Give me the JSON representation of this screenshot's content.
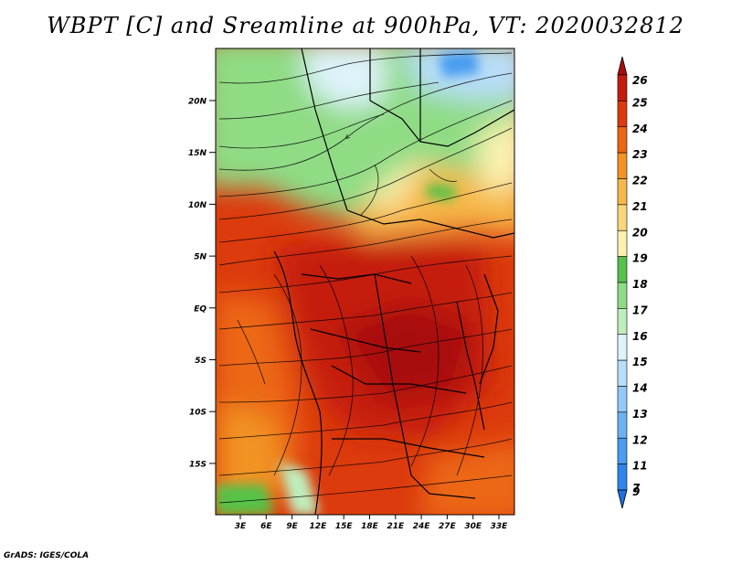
{
  "title": "WBPT [C] and Sreamline at 900hPa, VT: 2020032812",
  "credit": "GrADS: IGES/COLA",
  "map": {
    "lat_labels": [
      "20N",
      "15N",
      "10N",
      "5N",
      "EQ",
      "5S",
      "10S",
      "15S"
    ],
    "lon_labels": [
      "3E",
      "6E",
      "9E",
      "12E",
      "15E",
      "18E",
      "21E",
      "24E",
      "27E",
      "30E",
      "33E"
    ]
  },
  "colorbar": {
    "labels": [
      "7",
      "9",
      "11",
      "12",
      "13",
      "14",
      "15",
      "16",
      "17",
      "18",
      "19",
      "20",
      "21",
      "22",
      "23",
      "24",
      "25",
      "26"
    ],
    "colors": [
      "#1f6fe3",
      "#2f86ea",
      "#4a9cf0",
      "#6cb2f4",
      "#92c9f7",
      "#b9defa",
      "#dff3fb",
      "#bfeebd",
      "#8fdc85",
      "#56c24a",
      "#fbf2b0",
      "#f9d77a",
      "#f6b84a",
      "#f29324",
      "#ec6713",
      "#dc3b0d",
      "#c51d0a",
      "#a80d0a"
    ]
  }
}
